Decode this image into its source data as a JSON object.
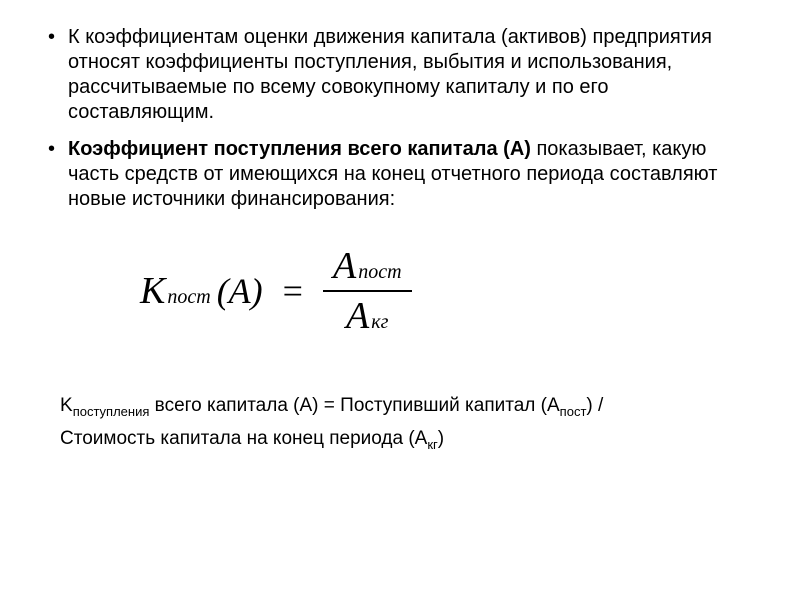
{
  "bullets": {
    "item1": "К коэффициентам оценки движения капитала (активов) предприятия относят коэффициенты поступления, выбытия и использования, рассчитываемые по всему совокупному капиталу и по его составляющим.",
    "item2_bold": "Коэффициент поступления всего капитала (А)",
    "item2_rest": " показывает, какую часть средств от имеющихся на конец отчетного периода составляют новые источники финансирования:"
  },
  "formula": {
    "lhs_var": "K",
    "lhs_sub": "пост",
    "lhs_arg": "(A)",
    "eq": "=",
    "num_var": "A",
    "num_sub": "пост",
    "den_var": "A",
    "den_sub": "кг"
  },
  "bottom": {
    "k": "K",
    "k_sub": "поступления",
    "mid1": " всего капитала (А) = Поступивший капитал (А",
    "sub1": "пост",
    "mid2": ") /",
    "line2": "Стоимость капитала на конец периода (А",
    "sub2": "кг",
    "end": ")"
  },
  "styling": {
    "background_color": "#ffffff",
    "text_color": "#000000",
    "body_fontsize": 20,
    "formula_fontsize": 36,
    "bottom_fontsize": 19,
    "font_family_body": "Arial",
    "font_family_formula": "Times New Roman"
  }
}
